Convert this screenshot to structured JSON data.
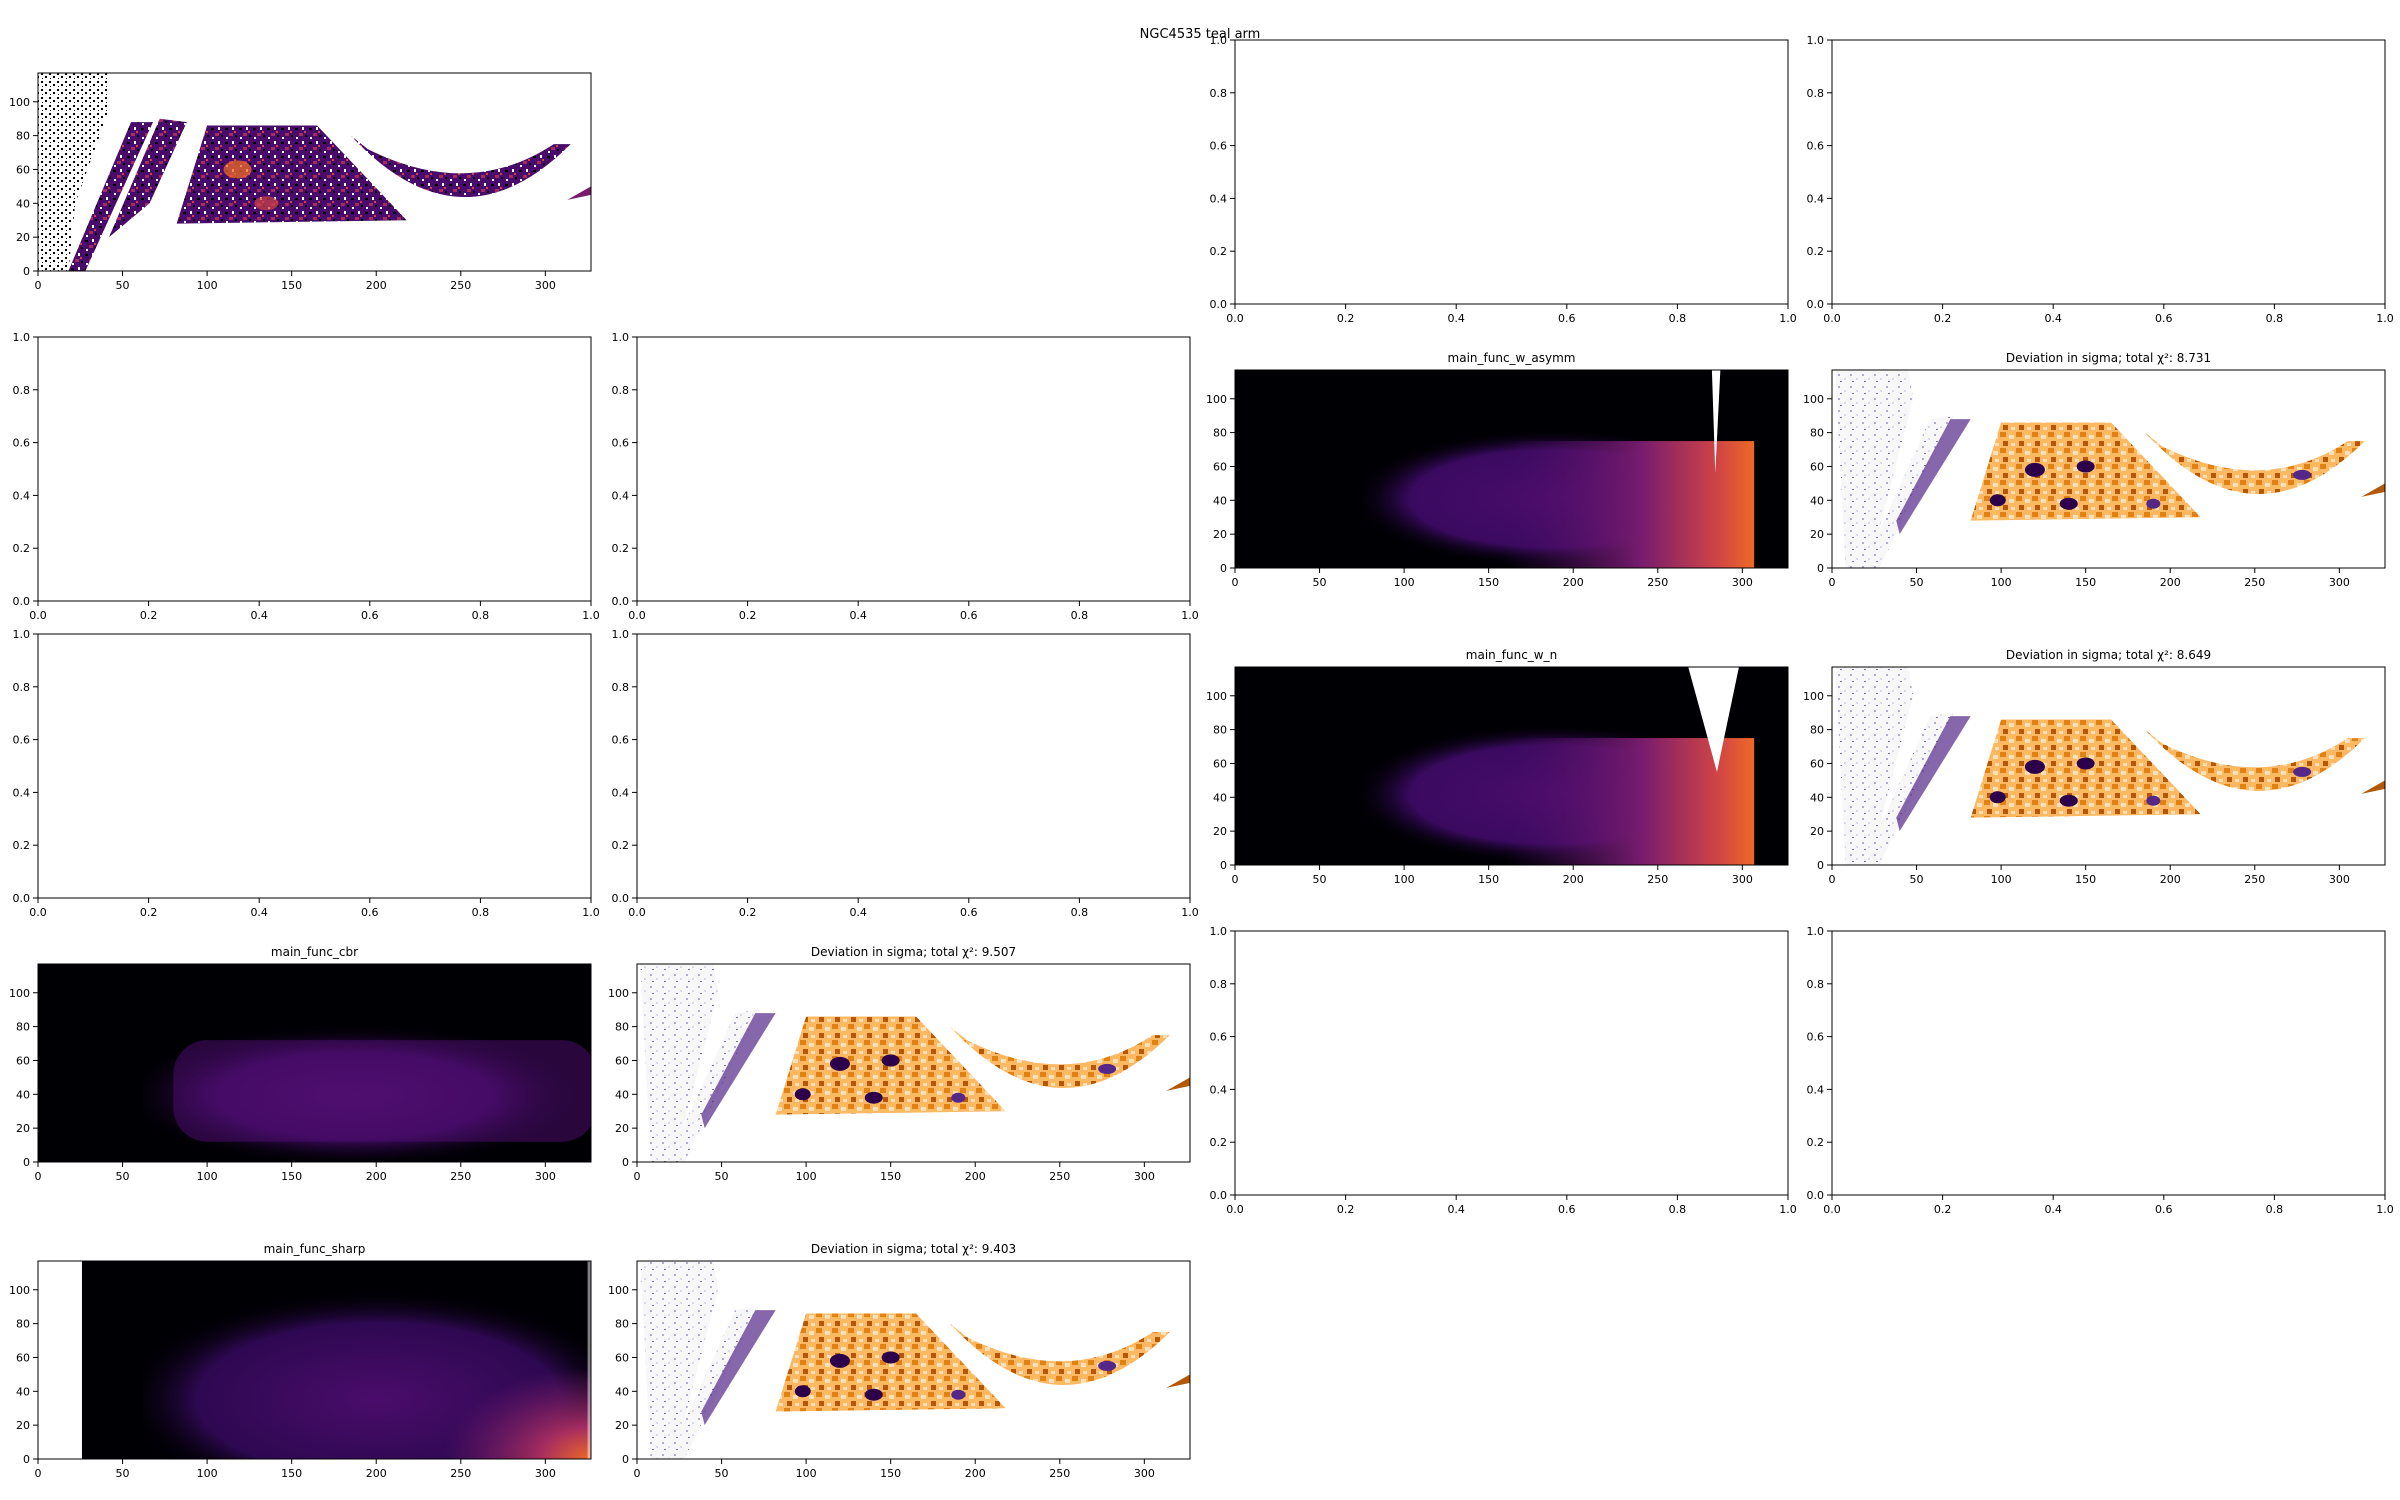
{
  "figure": {
    "suptitle": "NGC4535 teal arm"
  },
  "colors": {
    "inferno": [
      "#000004",
      "#1b0c41",
      "#4a0c6b",
      "#781c6d",
      "#a52c60",
      "#cf4446",
      "#ed6925",
      "#fb9b06",
      "#f7d13d",
      "#fcffa4"
    ],
    "diverging": [
      "#2d004b",
      "#542788",
      "#8073ac",
      "#b2abd2",
      "#d8daeb",
      "#f7f7f7",
      "#fee0b6",
      "#fdb863",
      "#e08214",
      "#b35806",
      "#7f3b08"
    ]
  },
  "chart_data": [
    {
      "id": "data-panel",
      "type": "heatmap",
      "title": "",
      "xlim": [
        0,
        327
      ],
      "ylim": [
        0,
        117
      ],
      "xticks": [
        "0",
        "50",
        "100",
        "150",
        "200",
        "250",
        "300"
      ],
      "yticks": [
        "0",
        "20",
        "40",
        "60",
        "80",
        "100"
      ],
      "colormap": "inferno",
      "content": "observed arm intensity map with masked (white) pixels"
    },
    {
      "id": "empty-a",
      "type": "blank",
      "title": "",
      "xlim": [
        0,
        1
      ],
      "ylim": [
        0,
        1
      ],
      "xticks": [
        "0.0",
        "0.2",
        "0.4",
        "0.6",
        "0.8",
        "1.0"
      ],
      "yticks": [
        "0.0",
        "0.2",
        "0.4",
        "0.6",
        "0.8",
        "1.0"
      ]
    },
    {
      "id": "empty-b",
      "type": "blank",
      "title": "",
      "xlim": [
        0,
        1
      ],
      "ylim": [
        0,
        1
      ],
      "xticks": [
        "0.0",
        "0.2",
        "0.4",
        "0.6",
        "0.8",
        "1.0"
      ],
      "yticks": [
        "0.0",
        "0.2",
        "0.4",
        "0.6",
        "0.8",
        "1.0"
      ]
    },
    {
      "id": "empty-c",
      "type": "blank",
      "title": "",
      "xlim": [
        0,
        1
      ],
      "ylim": [
        0,
        1
      ],
      "xticks": [
        "0.0",
        "0.2",
        "0.4",
        "0.6",
        "0.8",
        "1.0"
      ],
      "yticks": [
        "0.0",
        "0.2",
        "0.4",
        "0.6",
        "0.8",
        "1.0"
      ]
    },
    {
      "id": "empty-d",
      "type": "blank",
      "title": "",
      "xlim": [
        0,
        1
      ],
      "ylim": [
        0,
        1
      ],
      "xticks": [
        "0.0",
        "0.2",
        "0.4",
        "0.6",
        "0.8",
        "1.0"
      ],
      "yticks": [
        "0.0",
        "0.2",
        "0.4",
        "0.6",
        "0.8",
        "1.0"
      ]
    },
    {
      "id": "empty-e",
      "type": "blank",
      "title": "",
      "xlim": [
        0,
        1
      ],
      "ylim": [
        0,
        1
      ],
      "xticks": [
        "0.0",
        "0.2",
        "0.4",
        "0.6",
        "0.8",
        "1.0"
      ],
      "yticks": [
        "0.0",
        "0.2",
        "0.4",
        "0.6",
        "0.8",
        "1.0"
      ]
    },
    {
      "id": "empty-f",
      "type": "blank",
      "title": "",
      "xlim": [
        0,
        1
      ],
      "ylim": [
        0,
        1
      ],
      "xticks": [
        "0.0",
        "0.2",
        "0.4",
        "0.6",
        "0.8",
        "1.0"
      ],
      "yticks": [
        "0.0",
        "0.2",
        "0.4",
        "0.6",
        "0.8",
        "1.0"
      ]
    },
    {
      "id": "model-w-asymm",
      "type": "heatmap",
      "title": "main_func_w_asymm",
      "xlim": [
        0,
        327
      ],
      "ylim": [
        0,
        117
      ],
      "xticks": [
        "0",
        "50",
        "100",
        "150",
        "200",
        "250",
        "300"
      ],
      "yticks": [
        "0",
        "20",
        "40",
        "60",
        "80",
        "100"
      ],
      "colormap": "inferno",
      "content": "smooth model",
      "notch": "narrow"
    },
    {
      "id": "dev-w-asymm",
      "type": "heatmap",
      "title": "Deviation in sigma; total χ²: 8.731",
      "xlim": [
        0,
        327
      ],
      "ylim": [
        0,
        117
      ],
      "xticks": [
        "0",
        "50",
        "100",
        "150",
        "200",
        "250",
        "300"
      ],
      "yticks": [
        "0",
        "20",
        "40",
        "60",
        "80",
        "100"
      ],
      "colormap": "diverging",
      "chi2": 8.731
    },
    {
      "id": "model-w-n",
      "type": "heatmap",
      "title": "main_func_w_n",
      "xlim": [
        0,
        327
      ],
      "ylim": [
        0,
        117
      ],
      "xticks": [
        "0",
        "50",
        "100",
        "150",
        "200",
        "250",
        "300"
      ],
      "yticks": [
        "0",
        "20",
        "40",
        "60",
        "80",
        "100"
      ],
      "colormap": "inferno",
      "content": "smooth model",
      "notch": "wide"
    },
    {
      "id": "dev-w-n",
      "type": "heatmap",
      "title": "Deviation in sigma; total χ²: 8.649",
      "xlim": [
        0,
        327
      ],
      "ylim": [
        0,
        117
      ],
      "xticks": [
        "0",
        "50",
        "100",
        "150",
        "200",
        "250",
        "300"
      ],
      "yticks": [
        "0",
        "20",
        "40",
        "60",
        "80",
        "100"
      ],
      "colormap": "diverging",
      "chi2": 8.649
    },
    {
      "id": "empty-g",
      "type": "blank",
      "title": "",
      "xlim": [
        0,
        1
      ],
      "ylim": [
        0,
        1
      ],
      "xticks": [
        "0.0",
        "0.2",
        "0.4",
        "0.6",
        "0.8",
        "1.0"
      ],
      "yticks": [
        "0.0",
        "0.2",
        "0.4",
        "0.6",
        "0.8",
        "1.0"
      ]
    },
    {
      "id": "empty-h",
      "type": "blank",
      "title": "",
      "xlim": [
        0,
        1
      ],
      "ylim": [
        0,
        1
      ],
      "xticks": [
        "0.0",
        "0.2",
        "0.4",
        "0.6",
        "0.8",
        "1.0"
      ],
      "yticks": [
        "0.0",
        "0.2",
        "0.4",
        "0.6",
        "0.8",
        "1.0"
      ]
    },
    {
      "id": "model-cbr",
      "type": "heatmap",
      "title": "main_func_cbr",
      "xlim": [
        0,
        327
      ],
      "ylim": [
        0,
        117
      ],
      "xticks": [
        "0",
        "50",
        "100",
        "150",
        "200",
        "250",
        "300"
      ],
      "yticks": [
        "0",
        "20",
        "40",
        "60",
        "80",
        "100"
      ],
      "colormap": "inferno",
      "content": "smooth model"
    },
    {
      "id": "dev-cbr",
      "type": "heatmap",
      "title": "Deviation in sigma; total χ²: 9.507",
      "xlim": [
        0,
        327
      ],
      "ylim": [
        0,
        117
      ],
      "xticks": [
        "0",
        "50",
        "100",
        "150",
        "200",
        "250",
        "300"
      ],
      "yticks": [
        "0",
        "20",
        "40",
        "60",
        "80",
        "100"
      ],
      "colormap": "diverging",
      "chi2": 9.507
    },
    {
      "id": "model-sharp",
      "type": "heatmap",
      "title": "main_func_sharp",
      "xlim": [
        0,
        327
      ],
      "ylim": [
        0,
        117
      ],
      "xticks": [
        "0",
        "50",
        "100",
        "150",
        "200",
        "250",
        "300"
      ],
      "yticks": [
        "0",
        "20",
        "40",
        "60",
        "80",
        "100"
      ],
      "colormap": "inferno",
      "content": "smooth model"
    },
    {
      "id": "dev-sharp",
      "type": "heatmap",
      "title": "Deviation in sigma; total χ²: 9.403",
      "xlim": [
        0,
        327
      ],
      "ylim": [
        0,
        117
      ],
      "xticks": [
        "0",
        "50",
        "100",
        "150",
        "200",
        "250",
        "300"
      ],
      "yticks": [
        "0",
        "20",
        "40",
        "60",
        "80",
        "100"
      ],
      "colormap": "diverging",
      "chi2": 9.403
    }
  ]
}
